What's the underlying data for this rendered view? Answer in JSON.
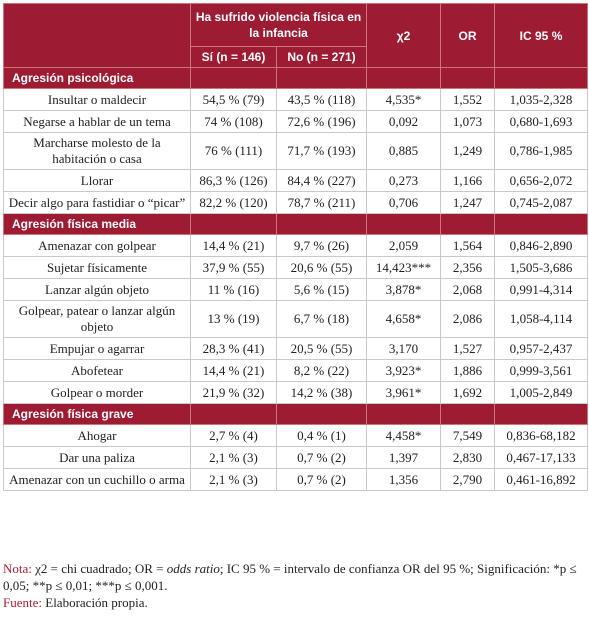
{
  "table": {
    "header": {
      "group": "Ha sufrido violencia física en la infancia",
      "si": "Sí (n = 146)",
      "no": "No (n = 271)",
      "chi": "χ2",
      "or": "OR",
      "ic": "IC 95 %"
    },
    "sections": [
      {
        "title": "Agresión psicológica",
        "rows": [
          [
            "Insultar o maldecir",
            "54,5 % (79)",
            "43,5 % (118)",
            "4,535*",
            "1,552",
            "1,035-2,328"
          ],
          [
            "Negarse a hablar de un tema",
            "74 % (108)",
            "72,6 % (196)",
            "0,092",
            "1,073",
            "0,680-1,693"
          ],
          [
            "Marcharse molesto de la habitación o casa",
            "76 % (111)",
            "71,7 % (193)",
            "0,885",
            "1,249",
            "0,786-1,985"
          ],
          [
            "Llorar",
            "86,3 % (126)",
            "84,4 % (227)",
            "0,273",
            "1,166",
            "0,656-2,072"
          ],
          [
            "Decir algo para fastidiar o “picar”",
            "82,2 % (120)",
            "78,7 % (211)",
            "0,706",
            "1,247",
            "0,745-2,087"
          ]
        ]
      },
      {
        "title": "Agresión física media",
        "rows": [
          [
            "Amenazar con golpear",
            "14,4 % (21)",
            "9,7 % (26)",
            "2,059",
            "1,564",
            "0,846-2,890"
          ],
          [
            "Sujetar físicamente",
            "37,9 % (55)",
            "20,6 % (55)",
            "14,423***",
            "2,356",
            "1,505-3,686"
          ],
          [
            "Lanzar algún objeto",
            "11 % (16)",
            "5,6 % (15)",
            "3,878*",
            "2,068",
            "0,991-4,314"
          ],
          [
            "Golpear, patear o lanzar algún objeto",
            "13 % (19)",
            "6,7 % (18)",
            "4,658*",
            "2,086",
            "1,058-4,114"
          ],
          [
            "Empujar o agarrar",
            "28,3 % (41)",
            "20,5 % (55)",
            "3,170",
            "1,527",
            "0,957-2,437"
          ],
          [
            "Abofetear",
            "14,4 % (21)",
            "8,2 % (22)",
            "3,923*",
            "1,886",
            "0,999-3,561"
          ],
          [
            "Golpear o morder",
            "21,9 % (32)",
            "14,2 % (38)",
            "3,961*",
            "1,692",
            "1,005-2,849"
          ]
        ]
      },
      {
        "title": "Agresión física grave",
        "rows": [
          [
            "Ahogar",
            "2,7 % (4)",
            "0,4 % (1)",
            "4,458*",
            "7,549",
            "0,836-68,182"
          ],
          [
            "Dar una paliza",
            "2,1 % (3)",
            "0,7 % (2)",
            "1,397",
            "2,830",
            "0,467-17,133"
          ],
          [
            "Amenazar con un cuchillo o arma",
            "2,1 % (3)",
            "0,7 % (2)",
            "1,356",
            "2,790",
            "0,461-16,892"
          ]
        ]
      }
    ]
  },
  "notes": {
    "note_label": "Nota:",
    "note_a": "χ2 = chi cuadrado; OR = ",
    "note_italic": "odds ratio",
    "note_b": "; IC 95 % = intervalo de confianza OR del 95 %; Significación: *p ≤ 0,05; **p ≤ 0,01; ***p ≤ 0,001.",
    "source_label": "Fuente:",
    "source": "Elaboración propia."
  }
}
